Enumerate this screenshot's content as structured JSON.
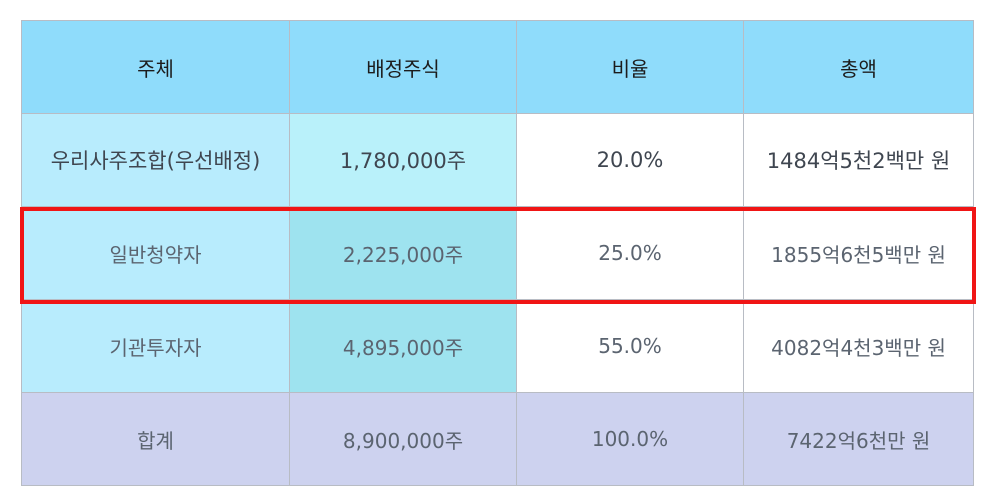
{
  "table": {
    "headers": [
      "주체",
      "배정주식",
      "비율",
      "총액"
    ],
    "rows": [
      {
        "entity": "우리사주조합(우선배정)",
        "shares": "1,780,000주",
        "ratio": "20.0%",
        "total": "1484억5천2백만 원"
      },
      {
        "entity": "일반청약자",
        "shares": "2,225,000주",
        "ratio": "25.0%",
        "total": "1855억6천5백만 원"
      },
      {
        "entity": "기관투자자",
        "shares": "4,895,000주",
        "ratio": "55.0%",
        "total": "4082억4천3백만 원"
      }
    ],
    "total_row": {
      "entity": "합계",
      "shares": "8,900,000주",
      "ratio": "100.0%",
      "total": "7422억6천만 원"
    }
  },
  "colors": {
    "header_bg": "#8fdcfb",
    "entity_bg": "#b8ecfd",
    "shares_bg": "#9ee3ef",
    "total_bg": "#cdd2ef",
    "highlight_border": "#f01515"
  }
}
